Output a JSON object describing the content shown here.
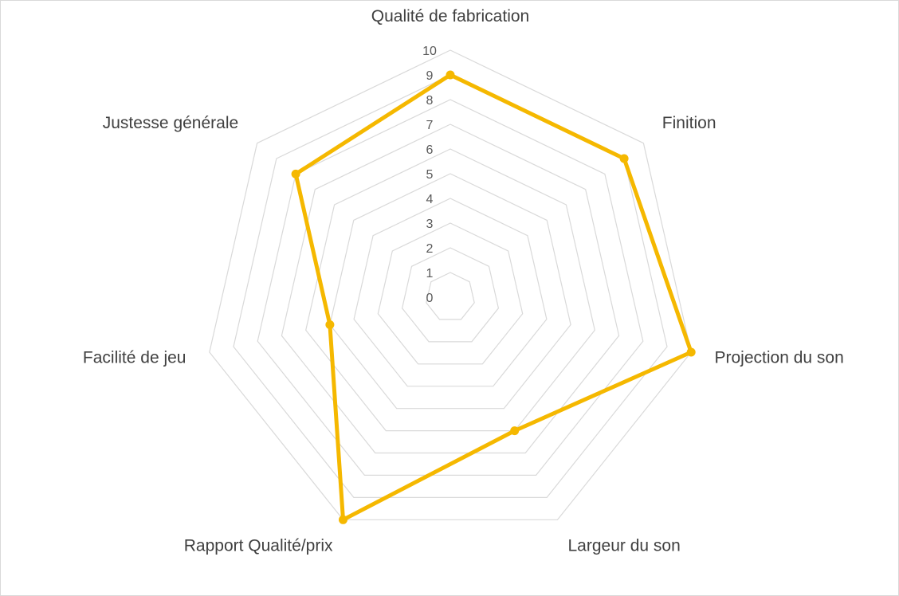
{
  "chart_data": {
    "type": "radar",
    "title": "",
    "categories": [
      "Qualité de fabrication",
      "Finition",
      "Projection du son",
      "Largeur du son",
      "Rapport Qualité/prix",
      "Facilité de jeu",
      "Justesse générale"
    ],
    "series": [
      {
        "values": [
          9,
          9,
          10,
          6,
          10,
          5,
          8
        ],
        "color": "#f5b800"
      }
    ],
    "rlim": [
      0,
      10
    ],
    "ticks": [
      "0",
      "1",
      "2",
      "3",
      "4",
      "5",
      "6",
      "7",
      "8",
      "9",
      "10"
    ],
    "grid": true,
    "grid_color": "#d9d9d9",
    "legend": "none"
  }
}
